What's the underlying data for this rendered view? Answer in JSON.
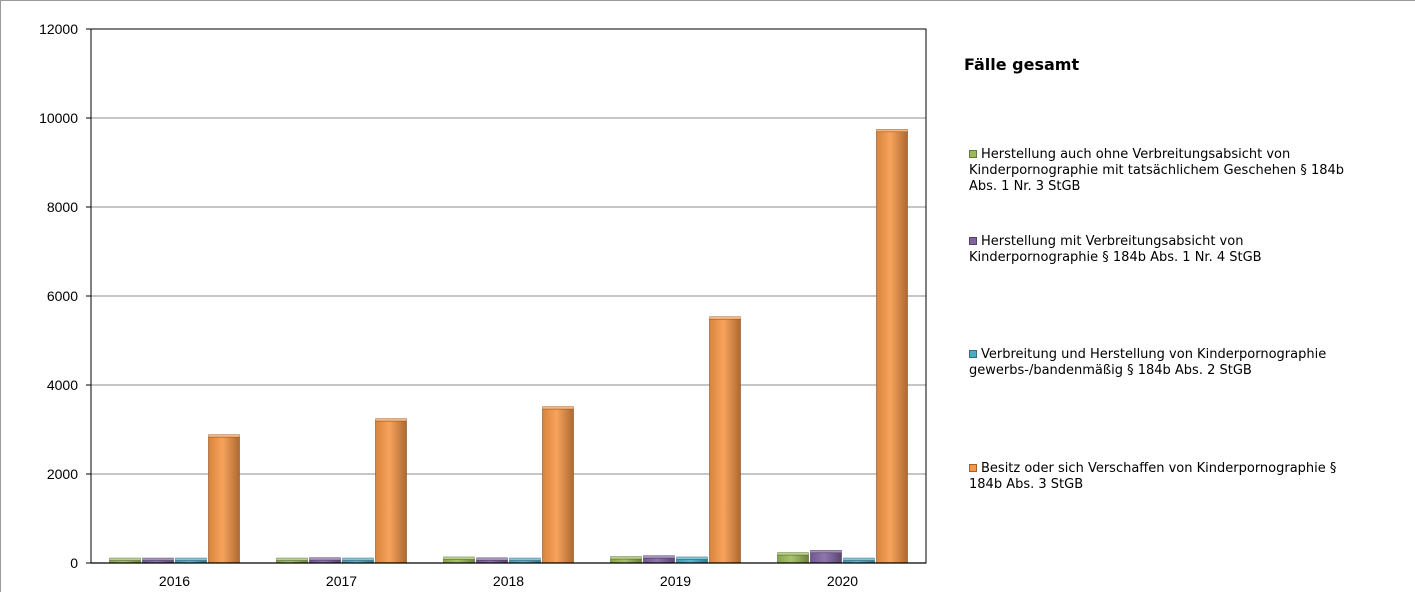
{
  "chart_data": {
    "type": "bar",
    "title": "",
    "xlabel": "",
    "ylabel": "",
    "categories": [
      "2016",
      "2017",
      "2018",
      "2019",
      "2020"
    ],
    "ylim": [
      0,
      12000
    ],
    "yticks": [
      "0",
      "2000",
      "4000",
      "6000",
      "8000",
      "10000",
      "12000"
    ],
    "grid": true,
    "legend_position": "right",
    "legend_title": "Fälle gesamt",
    "series": [
      {
        "name": "Herstellung auch ohne Verbreitungsabsicht von Kinderpornographie mit tatsächlichem Geschehen § 184b Abs. 1 Nr. 3 StGB",
        "color": "#9bbb59",
        "values": [
          40,
          55,
          80,
          90,
          180
        ]
      },
      {
        "name": "Herstellung mit Verbreitungsabsicht von Kinderpornographie § 184b Abs. 1 Nr. 4 StGB",
        "color": "#8064a2",
        "values": [
          30,
          65,
          60,
          110,
          230
        ]
      },
      {
        "name": "Verbreitung und Herstellung von Kinderpornographie gewerbs-/bandenmäßig § 184b Abs. 2 StGB",
        "color": "#4bacc6",
        "values": [
          20,
          20,
          30,
          80,
          45
        ]
      },
      {
        "name": "Besitz oder sich Verschaffen von Kinderpornographie § 184b Abs. 3 StGB",
        "color": "#f79646",
        "values": [
          2830,
          3190,
          3460,
          5480,
          9690
        ]
      }
    ],
    "legend_lines": [
      [
        "Herstellung auch ohne Verbreitungsabsicht von",
        "Kinderpornographie mit tatsächlichem Geschehen § 184b",
        "Abs. 1 Nr. 3 StGB"
      ],
      [
        "Herstellung mit Verbreitungsabsicht von",
        "Kinderpornographie § 184b Abs. 1 Nr. 4 StGB"
      ],
      [
        "Verbreitung und Herstellung von Kinderpornographie",
        "gewerbs-/bandenmäßig § 184b Abs. 2 StGB"
      ],
      [
        "Besitz oder sich Verschaffen von Kinderpornographie §",
        "184b Abs. 3 StGB"
      ]
    ]
  }
}
